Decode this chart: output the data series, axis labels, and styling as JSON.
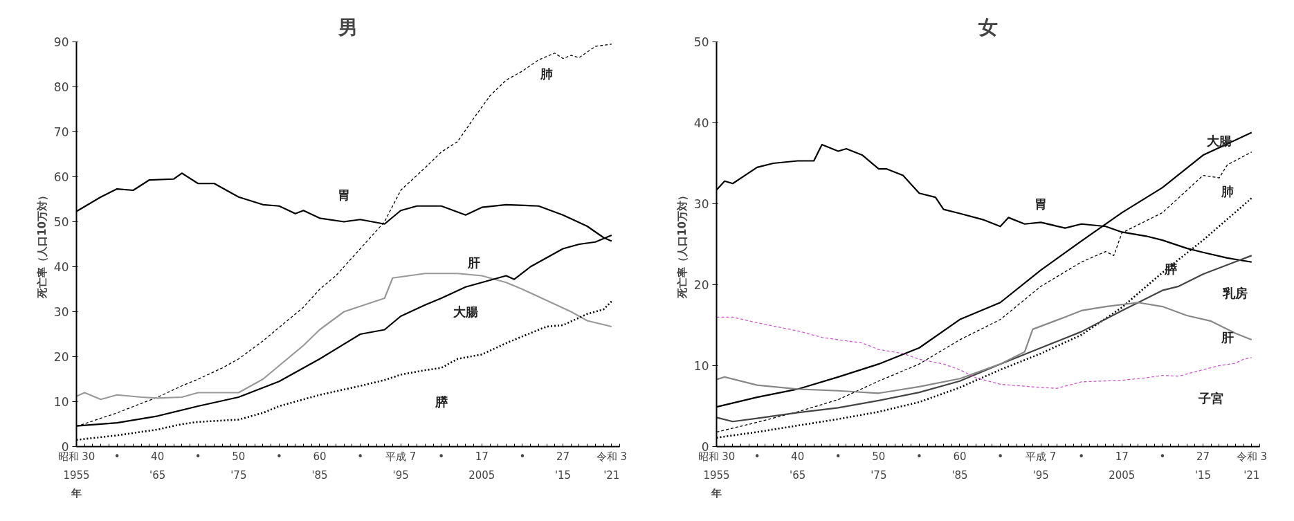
{
  "chart_data": [
    {
      "type": "line",
      "title": "男",
      "ylabel": "死亡率（人口10万対）",
      "xlabel": "年",
      "xlim": [
        1955,
        2022
      ],
      "ylim": [
        0,
        90
      ],
      "yticks": [
        0,
        10,
        20,
        30,
        40,
        50,
        60,
        70,
        80,
        90
      ],
      "xticks": [
        1955,
        {
          "value": 1960,
          "label": null
        },
        {
          "value": 1965,
          "label": "'65"
        },
        {
          "value": 1970,
          "label": null
        },
        {
          "value": 1975,
          "label": "'75"
        },
        {
          "value": 1980,
          "label": null
        },
        {
          "value": 1985,
          "label": "'85"
        },
        {
          "value": 1990,
          "label": null
        },
        {
          "value": 1995,
          "label": "'95"
        },
        {
          "value": 2000,
          "label": null
        },
        2005,
        {
          "value": 2010,
          "label": null
        },
        {
          "value": 2015,
          "label": "'15"
        },
        {
          "value": 2021,
          "label": "'21"
        }
      ],
      "annotations": [
        "昭和 30",
        "•",
        "40",
        "•",
        "50",
        "•",
        "60",
        "•",
        "平成 7",
        "•",
        "17",
        "•",
        "27",
        "令和 3"
      ],
      "grid": false,
      "series": [
        {
          "name": "胃",
          "color": "#000000",
          "line_style": "solid",
          "x": [
            1955,
            1958,
            1960,
            1962,
            1964,
            1967,
            1968,
            1970,
            1972,
            1975,
            1978,
            1980,
            1982,
            1983,
            1985,
            1988,
            1990,
            1993,
            1995,
            1997,
            2000,
            2003,
            2005,
            2008,
            2012,
            2015,
            2018,
            2020,
            2021
          ],
          "values": [
            52.3,
            55.5,
            57.3,
            57,
            59.3,
            59.5,
            60.8,
            58.5,
            58.5,
            55.5,
            53.8,
            53.5,
            51.8,
            52.5,
            50.8,
            50,
            50.5,
            49.5,
            52.5,
            53.5,
            53.5,
            51.5,
            53.2,
            53.8,
            53.5,
            51.5,
            49,
            46.5,
            45.7
          ]
        },
        {
          "name": "肺",
          "color": "#000000",
          "line_style": "dashed",
          "x": [
            1955,
            1960,
            1965,
            1968,
            1970,
            1973,
            1975,
            1978,
            1980,
            1983,
            1985,
            1987,
            1990,
            1993,
            1995,
            1998,
            2000,
            2002,
            2004,
            2006,
            2008,
            2010,
            2012,
            2014,
            2015,
            2016,
            2017,
            2019,
            2021
          ],
          "values": [
            4.5,
            7.5,
            11,
            13.5,
            15,
            17.5,
            19.5,
            23.5,
            26.5,
            31,
            35,
            38,
            44,
            50,
            57,
            62,
            65.5,
            67.8,
            73,
            78,
            81.5,
            83.5,
            86,
            87.5,
            86.3,
            87,
            86.5,
            89,
            89.5
          ]
        },
        {
          "name": "肝",
          "color": "#999999",
          "line_style": "solid",
          "x": [
            1955,
            1956,
            1958,
            1960,
            1963,
            1965,
            1968,
            1970,
            1975,
            1978,
            1980,
            1983,
            1985,
            1988,
            1993,
            1994,
            1996,
            1998,
            2002,
            2005,
            2008,
            2010,
            2013,
            2016,
            2018,
            2021
          ],
          "values": [
            11.2,
            12,
            10.5,
            11.5,
            11,
            10.8,
            11,
            12,
            12,
            15,
            18,
            22.5,
            26,
            30,
            33,
            37.5,
            38,
            38.5,
            38.5,
            38,
            36.5,
            35,
            32.5,
            30,
            28,
            26.7
          ]
        },
        {
          "name": "大腸",
          "color": "#000000",
          "line_style": "solid",
          "x": [
            1955,
            1960,
            1965,
            1970,
            1975,
            1980,
            1985,
            1990,
            1993,
            1995,
            1998,
            2000,
            2003,
            2005,
            2008,
            2009,
            2011,
            2015,
            2017,
            2019,
            2021
          ],
          "values": [
            4.6,
            5.3,
            6.8,
            9,
            11,
            14.5,
            19.5,
            25,
            26,
            29,
            31.5,
            33,
            35.5,
            36.5,
            38,
            37.2,
            40,
            44,
            45,
            45.5,
            47
          ]
        },
        {
          "name": "膵",
          "color": "#000000",
          "line_style": "dotted",
          "x": [
            1955,
            1960,
            1965,
            1968,
            1970,
            1975,
            1978,
            1980,
            1983,
            1985,
            1990,
            1993,
            1995,
            1998,
            2000,
            2002,
            2005,
            2008,
            2010,
            2013,
            2015,
            2018,
            2020,
            2021
          ],
          "values": [
            1.5,
            2.5,
            3.8,
            5,
            5.5,
            6,
            7.5,
            9,
            10.5,
            11.5,
            13.5,
            14.8,
            16,
            17,
            17.5,
            19.5,
            20.5,
            23,
            24.5,
            26.7,
            27,
            29.5,
            30.5,
            32.3
          ]
        }
      ]
    },
    {
      "type": "line",
      "title": "女",
      "ylabel": "死亡率（人口10万対）",
      "xlabel": "年",
      "xlim": [
        1955,
        2022
      ],
      "ylim": [
        0,
        50
      ],
      "yticks": [
        0,
        10,
        20,
        30,
        40,
        50
      ],
      "xticks": [
        1955,
        {
          "value": 1960,
          "label": null
        },
        {
          "value": 1965,
          "label": "'65"
        },
        {
          "value": 1970,
          "label": null
        },
        {
          "value": 1975,
          "label": "'75"
        },
        {
          "value": 1980,
          "label": null
        },
        {
          "value": 1985,
          "label": "'85"
        },
        {
          "value": 1990,
          "label": null
        },
        {
          "value": 1995,
          "label": "'95"
        },
        {
          "value": 2000,
          "label": null
        },
        2005,
        {
          "value": 2010,
          "label": null
        },
        {
          "value": 2015,
          "label": "'15"
        },
        {
          "value": 2021,
          "label": "'21"
        }
      ],
      "annotations": [
        "昭和 30",
        "•",
        "40",
        "•",
        "50",
        "•",
        "60",
        "•",
        "平成 7",
        "•",
        "17",
        "•",
        "27",
        "令和 3"
      ],
      "grid": false,
      "series": [
        {
          "name": "胃",
          "color": "#000000",
          "line_style": "solid",
          "x": [
            1955,
            1956,
            1957,
            1960,
            1962,
            1965,
            1967,
            1968,
            1970,
            1971,
            1973,
            1975,
            1976,
            1978,
            1980,
            1982,
            1983,
            1985,
            1988,
            1990,
            1991,
            1993,
            1995,
            1998,
            2000,
            2003,
            2005,
            2008,
            2010,
            2013,
            2015,
            2018,
            2021
          ],
          "values": [
            31.7,
            32.8,
            32.5,
            34.5,
            35,
            35.3,
            35.3,
            37.3,
            36.5,
            36.8,
            36,
            34.3,
            34.3,
            33.5,
            31.3,
            30.8,
            29.3,
            28.8,
            28,
            27.2,
            28.3,
            27.5,
            27.7,
            27,
            27.5,
            27.2,
            26.5,
            26,
            25.5,
            24.5,
            24,
            23.3,
            22.8
          ]
        },
        {
          "name": "大腸",
          "color": "#000000",
          "line_style": "solid",
          "x": [
            1955,
            1960,
            1965,
            1970,
            1975,
            1980,
            1985,
            1990,
            1995,
            2000,
            2005,
            2010,
            2015,
            2021
          ],
          "values": [
            4.9,
            6.1,
            7.1,
            8.6,
            10.2,
            12.2,
            15.7,
            17.8,
            21.8,
            25.4,
            28.9,
            32,
            36,
            38.8
          ]
        },
        {
          "name": "肺",
          "color": "#000000",
          "line_style": "dashed",
          "x": [
            1955,
            1960,
            1965,
            1970,
            1975,
            1980,
            1985,
            1990,
            1995,
            2000,
            2003,
            2004,
            2005,
            2010,
            2015,
            2017,
            2018,
            2021
          ],
          "values": [
            1.8,
            3,
            4.3,
            5.8,
            8.1,
            10.2,
            13.2,
            15.7,
            19.8,
            22.8,
            24.1,
            23.6,
            26.4,
            28.9,
            33.5,
            33.2,
            34.8,
            36.4
          ]
        },
        {
          "name": "膵",
          "color": "#000000",
          "line_style": "dotted",
          "x": [
            1955,
            1960,
            1965,
            1970,
            1975,
            1980,
            1985,
            1990,
            1995,
            2000,
            2005,
            2010,
            2015,
            2021
          ],
          "values": [
            1.1,
            1.8,
            2.6,
            3.4,
            4.3,
            5.5,
            7.3,
            9.5,
            11.5,
            13.8,
            17.2,
            21.5,
            25.5,
            30.7
          ]
        },
        {
          "name": "乳房",
          "color": "#444444",
          "line_style": "solid",
          "x": [
            1955,
            1957,
            1960,
            1965,
            1970,
            1975,
            1980,
            1985,
            1990,
            1995,
            2000,
            2005,
            2010,
            2012,
            2015,
            2021
          ],
          "values": [
            3.6,
            3.1,
            3.5,
            4.2,
            4.8,
            5.7,
            6.7,
            8.1,
            10.2,
            12.2,
            14.2,
            16.8,
            19.3,
            19.8,
            21.3,
            23.6
          ]
        },
        {
          "name": "肝",
          "color": "#888888",
          "line_style": "solid",
          "x": [
            1955,
            1956,
            1960,
            1965,
            1970,
            1975,
            1980,
            1985,
            1990,
            1993,
            1994,
            1998,
            2000,
            2003,
            2007,
            2010,
            2013,
            2016,
            2019,
            2021
          ],
          "values": [
            8.3,
            8.6,
            7.6,
            7.1,
            6.9,
            6.6,
            7.4,
            8.4,
            10.2,
            11.7,
            14.5,
            16,
            16.8,
            17.3,
            17.8,
            17.3,
            16.2,
            15.5,
            14,
            13.2
          ]
        },
        {
          "name": "子宮",
          "color": "#cc55cc",
          "line_style": "dashed",
          "x": [
            1955,
            1957,
            1960,
            1965,
            1968,
            1970,
            1973,
            1975,
            1978,
            1980,
            1983,
            1985,
            1987,
            1990,
            1995,
            1997,
            2000,
            2005,
            2008,
            2010,
            2012,
            2015,
            2017,
            2019,
            2020,
            2021
          ],
          "values": [
            16,
            16,
            15.3,
            14.3,
            13.5,
            13.2,
            12.8,
            12,
            11.5,
            10.8,
            10.2,
            9.5,
            8.5,
            7.7,
            7.3,
            7.2,
            8,
            8.2,
            8.5,
            8.8,
            8.7,
            9.5,
            10,
            10.3,
            10.8,
            11
          ]
        }
      ]
    }
  ]
}
